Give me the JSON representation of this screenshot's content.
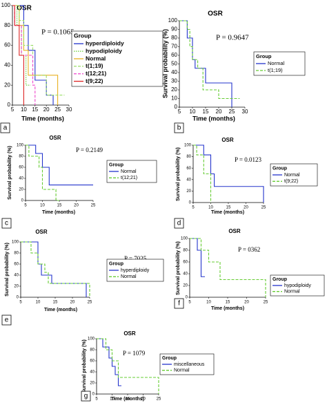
{
  "chart_data": [
    {
      "type": "line",
      "panel": "a",
      "title": "OSR",
      "annotation": "P = 0.1065",
      "annotation_color": "#000000",
      "xlabel": "Time (months)",
      "legend_title": "Group",
      "xlim": [
        5,
        30
      ],
      "xticks": [
        5,
        10,
        15,
        20,
        25,
        30
      ],
      "ylim": [
        0,
        100
      ],
      "yticks": [
        0,
        20,
        40,
        60,
        80,
        100
      ],
      "series": [
        {
          "name": "hyperdiploidy",
          "color": "#2233cc",
          "style": "solid",
          "x": [
            5,
            10,
            10,
            12,
            12,
            15,
            15,
            20,
            20,
            23,
            23
          ],
          "values": [
            100,
            100,
            80,
            80,
            55,
            55,
            25,
            25,
            10,
            10,
            0
          ]
        },
        {
          "name": "hypodiploidy",
          "color": "#66cc33",
          "style": "dotted",
          "x": [
            5,
            7,
            7,
            9,
            9,
            11,
            11,
            13
          ],
          "values": [
            100,
            100,
            80,
            80,
            50,
            50,
            20,
            20
          ]
        },
        {
          "name": "Normal",
          "color": "#e8b020",
          "style": "solid",
          "x": [
            5,
            8,
            8,
            10,
            10,
            12,
            12,
            25,
            25
          ],
          "values": [
            100,
            100,
            80,
            80,
            55,
            55,
            30,
            30,
            0
          ]
        },
        {
          "name": "t(1;19)",
          "color": "#99dd66",
          "style": "dashed",
          "x": [
            5,
            8,
            8,
            10,
            10,
            14,
            14,
            20,
            20,
            28
          ],
          "values": [
            100,
            100,
            85,
            85,
            60,
            60,
            30,
            30,
            10,
            10
          ]
        },
        {
          "name": "t(12;21)",
          "color": "#ee44cc",
          "style": "dashed",
          "x": [
            5,
            6,
            6,
            9,
            9,
            14,
            14,
            15,
            15
          ],
          "values": [
            100,
            100,
            80,
            80,
            50,
            50,
            20,
            20,
            0
          ]
        },
        {
          "name": "t(9;22)",
          "color": "#dd2222",
          "style": "solid",
          "x": [
            5,
            6,
            6,
            8,
            8,
            10,
            10
          ],
          "values": [
            100,
            100,
            80,
            80,
            50,
            50,
            0
          ]
        }
      ]
    },
    {
      "type": "line",
      "panel": "b",
      "title": "OSR",
      "annotation": "P = 0.9647",
      "annotation_color": "#2233cc",
      "xlabel": "Time (months)",
      "ylabel": "Survival probability (%)",
      "legend_title": "Group",
      "xlim": [
        5,
        30
      ],
      "xticks": [
        5,
        10,
        15,
        20,
        25,
        30
      ],
      "ylim": [
        0,
        100
      ],
      "yticks": [
        0,
        10,
        20,
        30,
        40,
        50,
        60,
        70,
        80,
        90,
        100
      ],
      "series": [
        {
          "name": "Normal",
          "color": "#2233cc",
          "style": "solid",
          "x": [
            5,
            8,
            8,
            10,
            10,
            11,
            11,
            15,
            15,
            25,
            25
          ],
          "values": [
            100,
            100,
            80,
            80,
            55,
            55,
            45,
            45,
            28,
            28,
            0
          ]
        },
        {
          "name": "t(1;19)",
          "color": "#66cc33",
          "style": "dashed",
          "x": [
            5,
            8,
            8,
            9,
            9,
            10,
            10,
            12,
            12,
            14,
            14,
            20,
            20,
            28
          ],
          "values": [
            100,
            100,
            90,
            90,
            70,
            70,
            55,
            55,
            45,
            45,
            20,
            20,
            10,
            10
          ]
        }
      ]
    },
    {
      "type": "line",
      "panel": "c",
      "title": "OSR",
      "annotation": "P = 0.2149",
      "annotation_color": "#000000",
      "xlabel": "Time (months)",
      "ylabel": "Survival probability (%)",
      "legend_title": "Group",
      "xlim": [
        5,
        25
      ],
      "xticks": [
        5,
        10,
        15,
        20,
        25
      ],
      "ylim": [
        0,
        100
      ],
      "yticks": [
        0,
        20,
        40,
        60,
        80,
        100
      ],
      "series": [
        {
          "name": "Normal",
          "color": "#2233cc",
          "style": "solid",
          "x": [
            5,
            8,
            8,
            10,
            10,
            12,
            12,
            25
          ],
          "values": [
            100,
            100,
            85,
            85,
            60,
            60,
            28,
            28
          ]
        },
        {
          "name": "t(12;21)",
          "color": "#66cc33",
          "style": "dashed",
          "x": [
            5,
            6,
            6,
            9,
            9,
            10,
            10,
            14,
            14,
            15,
            15
          ],
          "values": [
            100,
            100,
            80,
            80,
            60,
            60,
            20,
            20,
            0,
            0,
            0
          ]
        }
      ]
    },
    {
      "type": "line",
      "panel": "d",
      "title": "OSR",
      "annotation": "P = 0.0123",
      "annotation_color": "#2233cc",
      "xlabel": "Time (months)",
      "ylabel": "Survival probability (%)",
      "legend_title": "Group",
      "xlim": [
        5,
        25
      ],
      "xticks": [
        5,
        10,
        15,
        20,
        25
      ],
      "ylim": [
        0,
        100
      ],
      "yticks": [
        0,
        20,
        40,
        60,
        80,
        100
      ],
      "series": [
        {
          "name": "Normal",
          "color": "#2233cc",
          "style": "solid",
          "x": [
            5,
            8,
            8,
            10,
            10,
            11,
            11,
            25,
            25
          ],
          "values": [
            100,
            100,
            83,
            83,
            50,
            50,
            28,
            28,
            0
          ]
        },
        {
          "name": "t(9;22)",
          "color": "#66cc33",
          "style": "dashed",
          "x": [
            5,
            6,
            6,
            8,
            8,
            10,
            10
          ],
          "values": [
            100,
            100,
            83,
            83,
            50,
            50,
            0
          ]
        }
      ]
    },
    {
      "type": "line",
      "panel": "e",
      "title": "OSR",
      "annotation": "P = 7025",
      "annotation_color": "#000000",
      "xlabel": "Time (months)",
      "ylabel": "Survival probability (%)",
      "legend_title": "Group",
      "xlim": [
        5,
        25
      ],
      "xticks": [
        5,
        10,
        15,
        20,
        25
      ],
      "ylim": [
        0,
        100
      ],
      "yticks": [
        0,
        20,
        40,
        60,
        80,
        100
      ],
      "series": [
        {
          "name": "hyperdiploidy",
          "color": "#2233cc",
          "style": "solid",
          "x": [
            5,
            10,
            10,
            11,
            11,
            14,
            14,
            24,
            24
          ],
          "values": [
            100,
            100,
            60,
            60,
            40,
            40,
            25,
            25,
            0
          ]
        },
        {
          "name": "Normal",
          "color": "#66cc33",
          "style": "dashed",
          "x": [
            5,
            8,
            8,
            10,
            10,
            12,
            12,
            13,
            13,
            25,
            25
          ],
          "values": [
            100,
            100,
            80,
            80,
            60,
            60,
            45,
            45,
            25,
            25,
            0
          ]
        }
      ]
    },
    {
      "type": "line",
      "panel": "f",
      "title": "OSR",
      "annotation": "P = 0362",
      "annotation_color": "#000000",
      "xlabel": "Time (months)",
      "ylabel": "Survival probability (%)",
      "legend_title": "Group",
      "xlim": [
        5,
        25
      ],
      "xticks": [
        5,
        10,
        15,
        20,
        25
      ],
      "ylim": [
        0,
        100
      ],
      "yticks": [
        0,
        20,
        40,
        60,
        80,
        100
      ],
      "series": [
        {
          "name": "hypodiploidy",
          "color": "#2233cc",
          "style": "solid",
          "x": [
            5,
            7,
            7,
            8,
            8,
            9
          ],
          "values": [
            100,
            100,
            80,
            80,
            35,
            35
          ]
        },
        {
          "name": "Normal",
          "color": "#66cc33",
          "style": "dashed",
          "x": [
            5,
            8,
            8,
            10,
            10,
            13,
            13,
            25,
            25
          ],
          "values": [
            100,
            100,
            80,
            80,
            60,
            60,
            30,
            30,
            0
          ]
        }
      ]
    },
    {
      "type": "line",
      "panel": "g",
      "title": "OSR",
      "annotation": "P = 1079",
      "annotation_color": "#000000",
      "xlabel": "Time (months)",
      "ylabel": "Survival probability (%)",
      "legend_title": "Group",
      "xlim": [
        5,
        25
      ],
      "xticks": [
        5,
        10,
        15,
        20,
        25
      ],
      "ylim": [
        0,
        100
      ],
      "yticks": [
        0,
        20,
        40,
        60,
        80,
        100
      ],
      "series": [
        {
          "name": "miscellaneous",
          "color": "#2233cc",
          "style": "solid",
          "x": [
            5,
            7,
            7,
            9,
            9,
            10,
            10,
            11,
            11,
            12,
            12,
            13
          ],
          "values": [
            100,
            100,
            85,
            85,
            65,
            65,
            50,
            50,
            35,
            35,
            15,
            15
          ]
        },
        {
          "name": "Normal",
          "color": "#66cc33",
          "style": "dashed",
          "x": [
            5,
            8,
            8,
            10,
            10,
            12,
            12,
            25,
            25
          ],
          "values": [
            100,
            100,
            80,
            80,
            60,
            60,
            30,
            30,
            0
          ]
        }
      ]
    }
  ]
}
